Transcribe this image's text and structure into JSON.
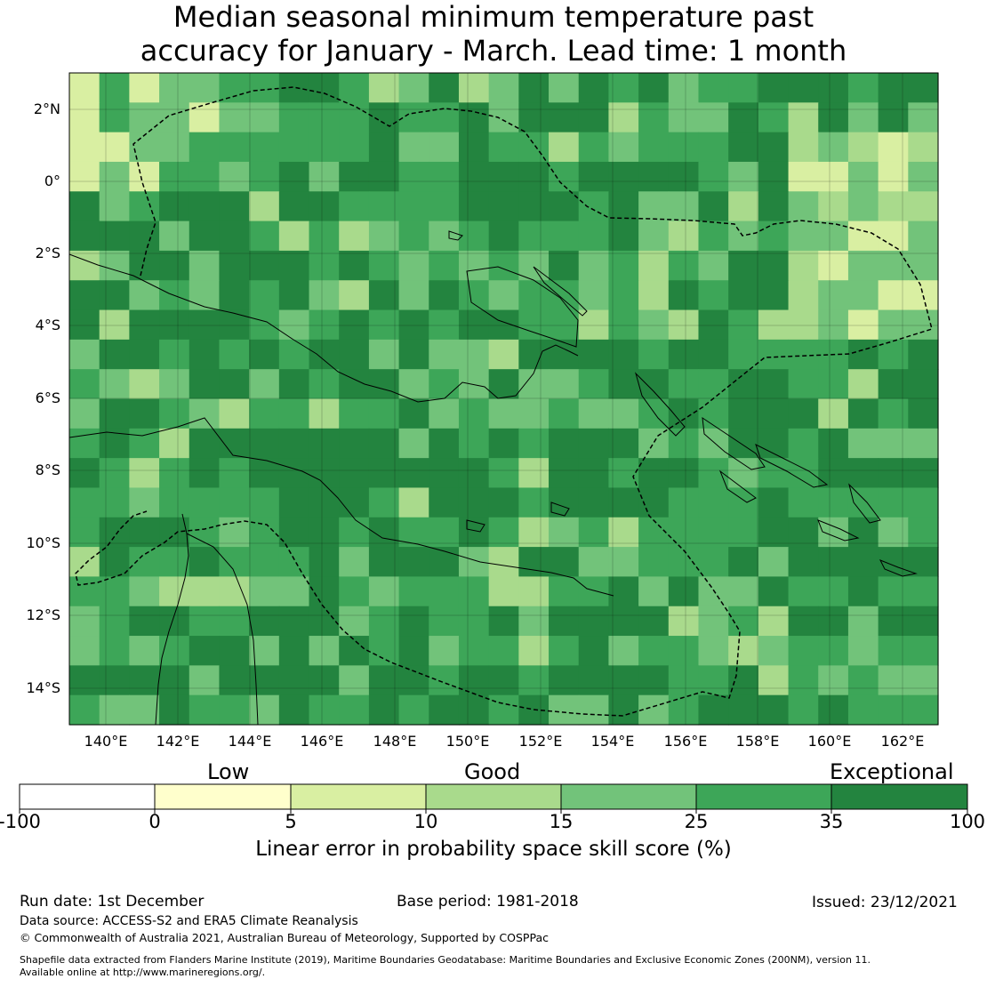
{
  "title": {
    "line1": "Median seasonal minimum temperature past",
    "line2": "accuracy for January - March. Lead time: 1 month"
  },
  "map": {
    "lat_labels": [
      "2°N",
      "0°",
      "2°S",
      "4°S",
      "6°S",
      "8°S",
      "10°S",
      "12°S",
      "14°S"
    ],
    "lon_labels": [
      "140°E",
      "142°E",
      "144°E",
      "146°E",
      "148°E",
      "150°E",
      "152°E",
      "154°E",
      "156°E",
      "158°E",
      "160°E",
      "162°E"
    ],
    "colors": {
      "exceptional": "#23843f",
      "good_high": "#3da658",
      "good": "#72c37a",
      "good_low": "#a9da8c",
      "low": "#d9efa2",
      "very_low": "#ffffcc"
    }
  },
  "colorbar": {
    "categories": [
      "Low",
      "Good",
      "Exceptional"
    ],
    "ticks": [
      "-100",
      "0",
      "5",
      "10",
      "15",
      "25",
      "35",
      "100"
    ],
    "colors": [
      "#ffffff",
      "#ffffcc",
      "#d9efa2",
      "#a9da8c",
      "#72c37a",
      "#3da658",
      "#23843f"
    ],
    "label": "Linear error in probability space skill score (%)"
  },
  "footer": {
    "run_date": "Run date: 1st December",
    "base_period": "Base period: 1981-2018",
    "issued": "Issued: 23/12/2021",
    "data_source": "Data source: ACCESS-S2 and ERA5 Climate Reanalysis",
    "copyright": "© Commonwealth of Australia 2021, Australian Bureau of Meteorology, Supported by COSPPac",
    "shapefile_line1": "Shapefile data extracted from Flanders Marine Institute (2019), Maritime Boundaries Geodatabase: Maritime Boundaries and Exclusive Economic Zones (200NM), version 11.",
    "shapefile_line2": "Available online at http://www.marineregions.org/."
  }
}
